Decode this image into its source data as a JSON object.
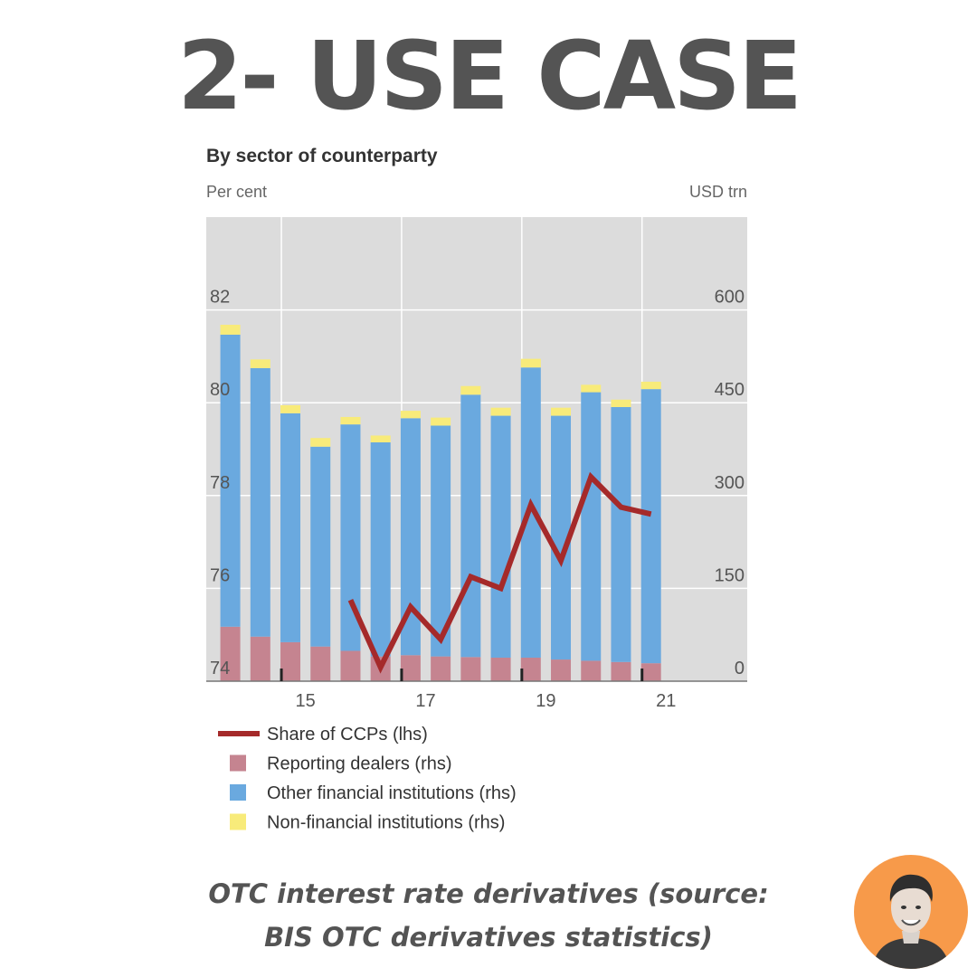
{
  "slide": {
    "title": "2- USE CASE"
  },
  "chart_data": {
    "type": "bar",
    "title": "By sector of counterparty",
    "y_left_label": "Per cent",
    "y_right_label": "USD trn",
    "y_left_ticks": [
      "74",
      "76",
      "78",
      "80",
      "82"
    ],
    "y_right_ticks": [
      "0",
      "150",
      "300",
      "450",
      "600"
    ],
    "y_left_range": [
      74,
      84
    ],
    "y_right_range": [
      0,
      750
    ],
    "x_tick_labels": [
      "15",
      "17",
      "19",
      "21"
    ],
    "x_tick_years": [
      2015,
      2017,
      2019,
      2021
    ],
    "x_range": [
      2013.5,
      2022.5
    ],
    "periods": [
      "H2 2013",
      "H1 2014",
      "H2 2014",
      "H1 2015",
      "H2 2015",
      "H1 2016",
      "H2 2016",
      "H1 2017",
      "H2 2017",
      "H1 2018",
      "H2 2018",
      "H1 2019",
      "H2 2019",
      "H1 2020",
      "H2 2020"
    ],
    "x": [
      2013.9,
      2014.4,
      2014.9,
      2015.4,
      2015.9,
      2016.4,
      2016.9,
      2017.4,
      2017.9,
      2018.4,
      2018.9,
      2019.4,
      2019.9,
      2020.4,
      2020.9
    ],
    "grid": true,
    "legend_position": "bottom",
    "series": [
      {
        "name": "Reporting dealers (rhs)",
        "kind": "bar",
        "axis": "rhs",
        "color": "#c58490",
        "values": [
          88,
          72,
          63,
          56,
          49,
          40,
          42,
          40,
          39,
          38,
          38,
          35,
          33,
          31,
          29
        ]
      },
      {
        "name": "Other financial institutions (rhs)",
        "kind": "bar",
        "axis": "rhs",
        "color": "#6aa9df",
        "values": [
          472,
          434,
          370,
          323,
          366,
          346,
          383,
          373,
          424,
          391,
          469,
          394,
          434,
          412,
          443
        ]
      },
      {
        "name": "Non-financial institutions (rhs)",
        "kind": "bar",
        "axis": "rhs",
        "color": "#f8eb7a",
        "values": [
          16,
          14,
          13,
          14,
          12,
          11,
          12,
          13,
          14,
          13,
          14,
          13,
          12,
          12,
          12
        ]
      },
      {
        "name": "Share of CCPs (lhs)",
        "kind": "line",
        "axis": "lhs",
        "color": "#a52a2a",
        "x": [
          2015.9,
          2016.4,
          2016.9,
          2017.4,
          2017.9,
          2018.4,
          2018.9,
          2019.4,
          2019.9,
          2020.4,
          2020.9
        ],
        "values": [
          75.75,
          74.3,
          75.6,
          74.9,
          76.25,
          76.0,
          77.8,
          76.6,
          78.4,
          77.75,
          77.6
        ]
      }
    ]
  },
  "caption": {
    "line1": "OTC interest rate derivatives (source:",
    "line2": "BIS OTC derivatives statistics)"
  }
}
